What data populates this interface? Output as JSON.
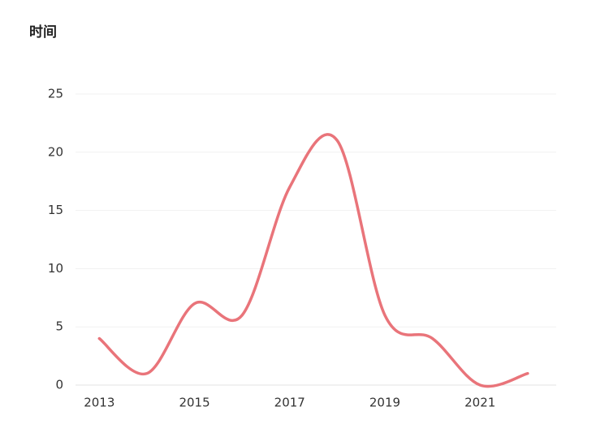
{
  "chart_data": {
    "type": "line",
    "title": "时间",
    "x": [
      2013,
      2014,
      2015,
      2016,
      2017,
      2018,
      2019,
      2020,
      2021,
      2022
    ],
    "series": [
      {
        "color": "#e9747a",
        "values": [
          4,
          1,
          7,
          6,
          17,
          21,
          6,
          4,
          0,
          1
        ]
      }
    ],
    "xlim": [
      2012.5,
      2022.6
    ],
    "xticks": [
      2013,
      2015,
      2017,
      2019,
      2021
    ],
    "ylim": [
      0,
      25
    ],
    "yticks": [
      0,
      5,
      10,
      15,
      20,
      25
    ],
    "grid": true,
    "smooth": true
  }
}
